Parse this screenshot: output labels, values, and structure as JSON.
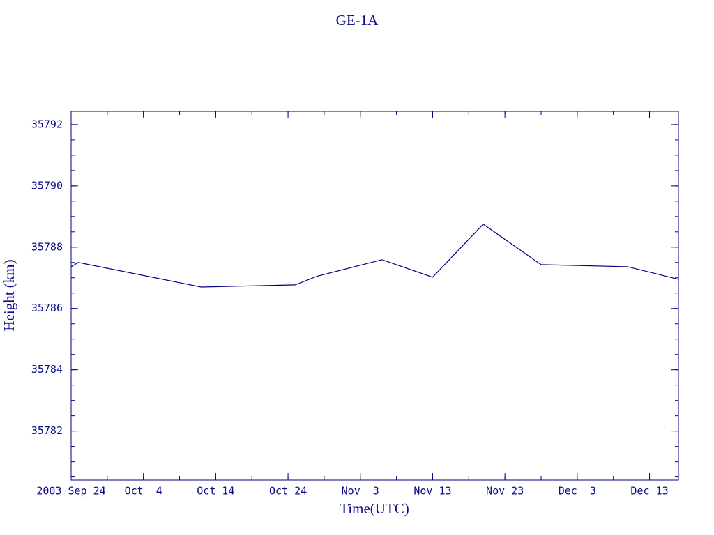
{
  "chart_data": {
    "type": "line",
    "title": "GE-1A",
    "x_label": "Time(UTC)",
    "y_label": "Height (km)",
    "x": [
      "2003-09-24",
      "2003-09-25",
      "2003-10-12",
      "2003-10-25",
      "2003-10-28",
      "2003-11-06",
      "2003-11-13",
      "2003-11-20",
      "2003-11-28",
      "2003-12-10",
      "2003-12-17"
    ],
    "series": [
      {
        "name": "GE-1A",
        "color": "#000080",
        "values": [
          35787.36,
          35787.5,
          35786.7,
          35786.77,
          35787.05,
          35787.59,
          35787.02,
          35788.75,
          35787.43,
          35787.36,
          35786.95
        ]
      }
    ],
    "xlim": [
      "2003-09-24",
      "2003-12-17"
    ],
    "xticks": [
      {
        "value": "2003-09-24",
        "label": "2003 Sep 24"
      },
      {
        "value": "2003-10-04",
        "label": "Oct  4"
      },
      {
        "value": "2003-10-14",
        "label": "Oct 14"
      },
      {
        "value": "2003-10-24",
        "label": "Oct 24"
      },
      {
        "value": "2003-11-03",
        "label": "Nov  3"
      },
      {
        "value": "2003-11-13",
        "label": "Nov 13"
      },
      {
        "value": "2003-11-23",
        "label": "Nov 23"
      },
      {
        "value": "2003-12-03",
        "label": "Dec  3"
      },
      {
        "value": "2003-12-13",
        "label": "Dec 13"
      }
    ],
    "ylim": [
      35780.4,
      35792.43
    ],
    "yticks": [
      35782,
      35784,
      35786,
      35788,
      35790,
      35792
    ],
    "grid": false
  }
}
